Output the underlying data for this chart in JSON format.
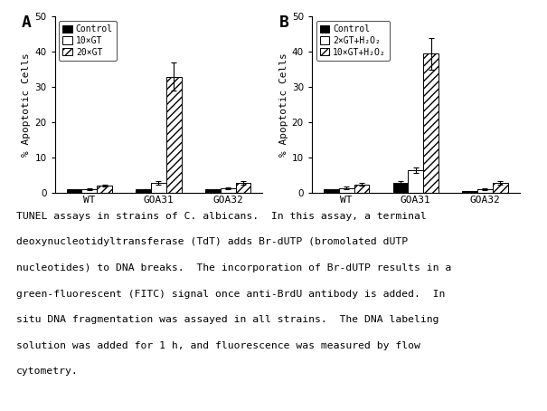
{
  "panel_A": {
    "label": "A",
    "groups": [
      "WT",
      "GOA31",
      "GOA32"
    ],
    "series": [
      {
        "name": "Control",
        "values": [
          1.0,
          1.0,
          1.0
        ],
        "errors": [
          0.2,
          0.2,
          0.2
        ],
        "facecolor": "black",
        "hatch": ""
      },
      {
        "name": "10×GT",
        "values": [
          1.2,
          3.0,
          1.3
        ],
        "errors": [
          0.3,
          0.5,
          0.3
        ],
        "facecolor": "white",
        "hatch": ""
      },
      {
        "name": "20×GT",
        "values": [
          2.2,
          33.0,
          3.0
        ],
        "errors": [
          0.3,
          4.0,
          0.5
        ],
        "facecolor": "white",
        "hatch": "////"
      }
    ],
    "ylabel": "% Apoptotic Cells",
    "ylim": [
      0,
      50
    ],
    "yticks": [
      0,
      10,
      20,
      30,
      40,
      50
    ]
  },
  "panel_B": {
    "label": "B",
    "groups": [
      "WT",
      "GOA31",
      "GOA32"
    ],
    "series": [
      {
        "name": "Control",
        "values": [
          1.0,
          3.0,
          0.5
        ],
        "errors": [
          0.2,
          0.3,
          0.2
        ],
        "facecolor": "black",
        "hatch": ""
      },
      {
        "name": "2×GT+H₂O₂",
        "values": [
          1.5,
          6.5,
          1.2
        ],
        "errors": [
          0.3,
          0.8,
          0.3
        ],
        "facecolor": "white",
        "hatch": ""
      },
      {
        "name": "10×GT+H₂O₂",
        "values": [
          2.5,
          39.5,
          3.0
        ],
        "errors": [
          0.3,
          4.5,
          0.5
        ],
        "facecolor": "white",
        "hatch": "////"
      }
    ],
    "ylabel": "% Apoptotic Cells",
    "ylim": [
      0,
      50
    ],
    "yticks": [
      0,
      10,
      20,
      30,
      40,
      50
    ]
  },
  "caption_lines": [
    "TUNEL assays in strains of C. albicans.  In this assay, a terminal",
    "deoxynucleotidyltransferase (TdT) adds Br-dUTP (bromolated dUTP",
    "nucleotides) to DNA breaks.  The incorporation of Br-dUTP results in a",
    "green-fluorescent (FITC) signal once anti-BrdU antibody is added.  In",
    "situ DNA fragmentation was assayed in all strains.  The DNA labeling",
    "solution was added for 1 h, and fluorescence was measured by flow",
    "cytometry."
  ],
  "bar_width": 0.22
}
